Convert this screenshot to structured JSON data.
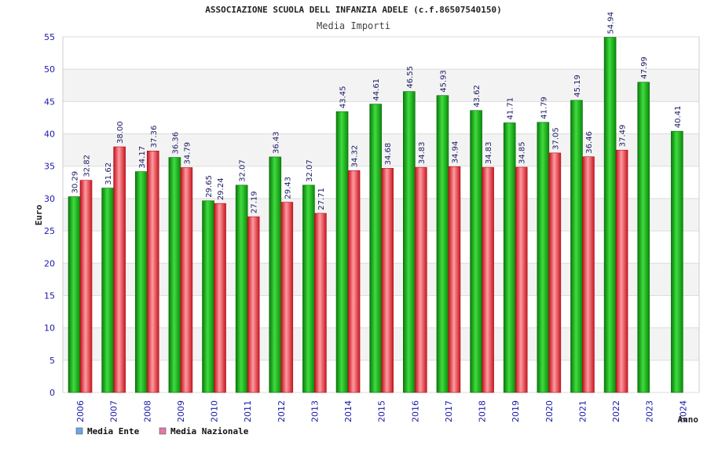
{
  "chart_data": {
    "type": "bar",
    "title": "ASSOCIAZIONE SCUOLA DELL INFANZIA ADELE (c.f.86507540150)",
    "subtitle": "Media Importi",
    "xlabel": "Anno",
    "ylabel": "Euro",
    "ylim": [
      0,
      55
    ],
    "yticks": [
      0,
      5,
      10,
      15,
      20,
      25,
      30,
      35,
      40,
      45,
      50,
      55
    ],
    "categories": [
      "2006",
      "2007",
      "2008",
      "2009",
      "2010",
      "2011",
      "2012",
      "2013",
      "2014",
      "2015",
      "2016",
      "2017",
      "2018",
      "2019",
      "2020",
      "2021",
      "2022",
      "2023",
      "2024"
    ],
    "series": [
      {
        "name": "Media Ente",
        "values": [
          30.29,
          31.62,
          34.17,
          36.36,
          29.65,
          32.07,
          36.43,
          32.07,
          43.45,
          44.61,
          46.55,
          45.93,
          43.62,
          41.71,
          41.79,
          45.19,
          54.94,
          47.99,
          40.41
        ],
        "labels": [
          "30.29",
          "31.62",
          "34.17",
          "36.36",
          "29.65",
          "32.07",
          "36.43",
          "32.07",
          "43.45",
          "44.61",
          "46.55",
          "45.93",
          "43.62",
          "41.71",
          "41.79",
          "45.19",
          "54.94",
          "47.99",
          "40.41"
        ],
        "color": "#1aa81a",
        "legend_color": "#6aa6e8"
      },
      {
        "name": "Media Nazionale",
        "values": [
          32.82,
          38.0,
          37.36,
          34.79,
          29.24,
          27.19,
          29.43,
          27.71,
          34.32,
          34.68,
          34.83,
          34.94,
          34.83,
          34.85,
          37.05,
          36.46,
          37.49,
          null,
          null
        ],
        "labels": [
          "32.82",
          "38.00",
          "37.36",
          "34.79",
          "29.24",
          "27.19",
          "29.43",
          "27.71",
          "34.32",
          "34.68",
          "34.83",
          "34.94",
          "34.83",
          "34.85",
          "37.05",
          "36.46",
          "37.49",
          "",
          ""
        ],
        "color": "#e0303a",
        "legend_color": "#e07aa8"
      }
    ],
    "grid": true,
    "legend_position": "bottom-left"
  }
}
